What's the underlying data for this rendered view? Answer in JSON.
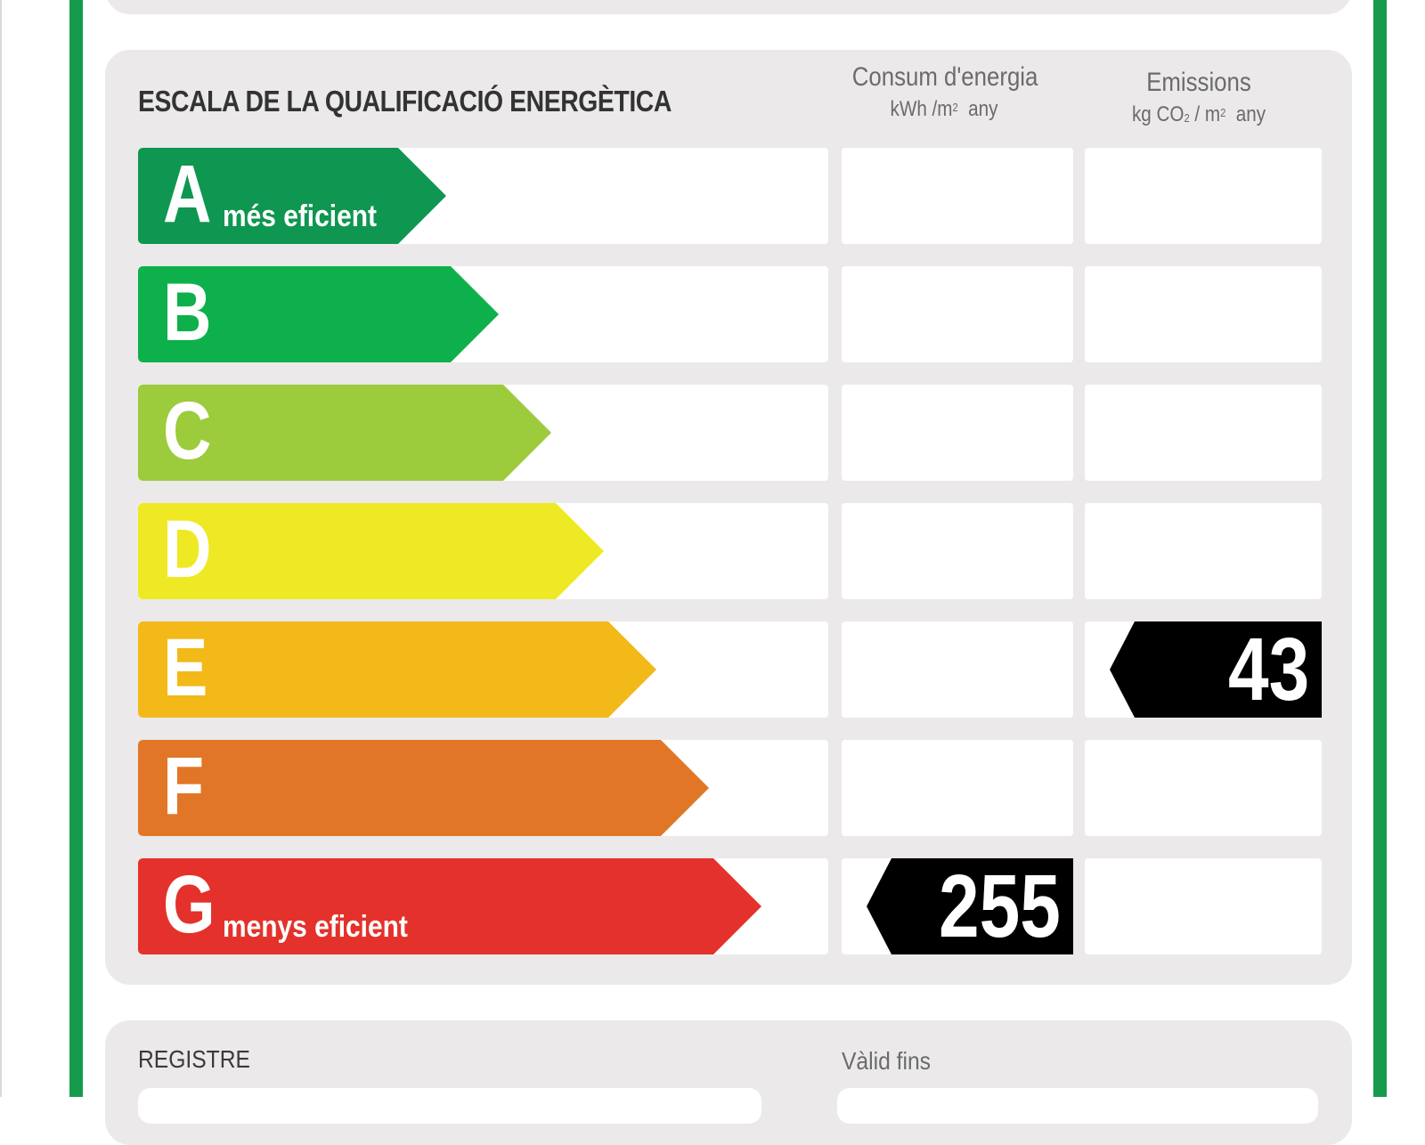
{
  "title": "ESCALA DE LA QUALIFICACIÓ ENERGÈTICA",
  "columns": {
    "energy": {
      "label": "Consum d'energia",
      "unit_pre": "kWh /m",
      "unit_sup": "2",
      "unit_post": "  any"
    },
    "emissions": {
      "label": "Emissions",
      "unit_pre": "kg CO",
      "unit_sub": "2",
      "unit_mid": " / m",
      "unit_sup": "2",
      "unit_post": "  any"
    }
  },
  "scale": [
    {
      "letter": "A",
      "desc": "més eficient",
      "color": "#0f9650"
    },
    {
      "letter": "B",
      "desc": "",
      "color": "#0eb04b"
    },
    {
      "letter": "C",
      "desc": "",
      "color": "#9ccb3b"
    },
    {
      "letter": "D",
      "desc": "",
      "color": "#efe925"
    },
    {
      "letter": "E",
      "desc": "",
      "color": "#f2b918"
    },
    {
      "letter": "F",
      "desc": "",
      "color": "#e27627"
    },
    {
      "letter": "G",
      "desc": "menys eficient",
      "color": "#e4312b"
    }
  ],
  "ratings": {
    "energy": {
      "value": "255",
      "class": "G"
    },
    "emissions": {
      "value": "43",
      "class": "E"
    }
  },
  "footer": {
    "registre_label": "REGISTRE",
    "valid_label": "Vàlid fins"
  },
  "colors": {
    "frame": "#169b4e",
    "panel": "#ebe9e9",
    "indicator": "#000000"
  }
}
